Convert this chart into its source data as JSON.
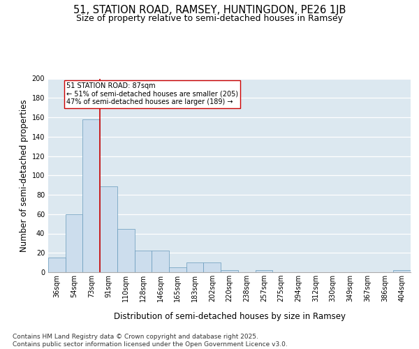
{
  "title_line1": "51, STATION ROAD, RAMSEY, HUNTINGDON, PE26 1JB",
  "title_line2": "Size of property relative to semi-detached houses in Ramsey",
  "xlabel": "Distribution of semi-detached houses by size in Ramsey",
  "ylabel": "Number of semi-detached properties",
  "categories": [
    "36sqm",
    "54sqm",
    "73sqm",
    "91sqm",
    "110sqm",
    "128sqm",
    "146sqm",
    "165sqm",
    "183sqm",
    "202sqm",
    "220sqm",
    "238sqm",
    "257sqm",
    "275sqm",
    "294sqm",
    "312sqm",
    "330sqm",
    "349sqm",
    "367sqm",
    "386sqm",
    "404sqm"
  ],
  "values": [
    15,
    60,
    158,
    89,
    45,
    22,
    22,
    5,
    10,
    10,
    2,
    0,
    2,
    0,
    0,
    0,
    0,
    0,
    0,
    0,
    2
  ],
  "bar_color": "#ccdded",
  "bar_edge_color": "#6699bb",
  "annotation_text": "51 STATION ROAD: 87sqm\n← 51% of semi-detached houses are smaller (205)\n47% of semi-detached houses are larger (189) →",
  "annotation_box_color": "#ffffff",
  "annotation_box_edge_color": "#cc0000",
  "red_line_color": "#cc0000",
  "ylim": [
    0,
    200
  ],
  "yticks": [
    0,
    20,
    40,
    60,
    80,
    100,
    120,
    140,
    160,
    180,
    200
  ],
  "background_color": "#dce8f0",
  "footer_text": "Contains HM Land Registry data © Crown copyright and database right 2025.\nContains public sector information licensed under the Open Government Licence v3.0.",
  "title_fontsize": 10.5,
  "subtitle_fontsize": 9,
  "axis_label_fontsize": 8.5,
  "tick_fontsize": 7,
  "footer_fontsize": 6.5,
  "annotation_fontsize": 7
}
